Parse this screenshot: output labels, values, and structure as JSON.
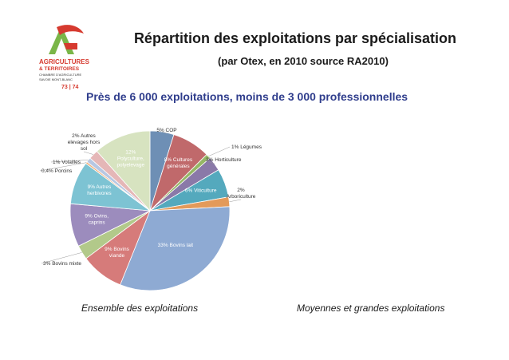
{
  "logo": {
    "line1": "AGRICULTURES",
    "line2": "& TERRITOIRES",
    "line3": "CHAMBRE D'AGRICULTURE",
    "line4": "SAVOIE MONT-BLANC",
    "line5": "73 | 74"
  },
  "header": {
    "title": "Répartition des exploitations par spécialisation",
    "subtitle": "(par Otex, en 2010 source RA2010)",
    "tagline": "Près de 6 000 exploitations, moins de 3 000 professionnelles"
  },
  "captions": {
    "left": "Ensemble des exploitations",
    "right": "Moyennes et grandes exploitations"
  },
  "chart_data": {
    "type": "pie",
    "title": "",
    "slices": [
      {
        "label": "5% COP",
        "value": 5,
        "color": "#6e8fb5",
        "inside": false
      },
      {
        "label": "8% Cultures générales",
        "value": 8,
        "color": "#c0696b",
        "inside": true
      },
      {
        "label": "1% Légumes",
        "value": 1,
        "color": "#95b765",
        "inside": false
      },
      {
        "label": "3% Horticulture",
        "value": 3,
        "color": "#8a79a8",
        "inside": false
      },
      {
        "label": "6% Viticulture",
        "value": 6,
        "color": "#54a9bd",
        "inside": true
      },
      {
        "label": "2% Arboriculture",
        "value": 2,
        "color": "#e39a5a",
        "inside": false
      },
      {
        "label": "33% Bovins lait",
        "value": 33,
        "color": "#8eaad3",
        "inside": true
      },
      {
        "label": "9% Bovins viande",
        "value": 9,
        "color": "#d67b7a",
        "inside": true
      },
      {
        "label": "3% Bovins mixte",
        "value": 3,
        "color": "#b2c98a",
        "inside": false
      },
      {
        "label": "9% Ovins, caprins",
        "value": 9,
        "color": "#9c8cbd",
        "inside": true
      },
      {
        "label": "9% Autres herbivores",
        "value": 9,
        "color": "#7dc3d3",
        "inside": true
      },
      {
        "label": "0,4% Porcins",
        "value": 0.4,
        "color": "#f0b07c",
        "inside": false
      },
      {
        "label": "1% Volailles",
        "value": 1,
        "color": "#b7c7e2",
        "inside": false
      },
      {
        "label": "2% Autres elevages hors sol",
        "value": 2,
        "color": "#e5b7b7",
        "inside": false
      },
      {
        "label": "12% Polyculture, polyelevage",
        "value": 12,
        "color": "#d7e3c0",
        "inside": true
      }
    ]
  }
}
